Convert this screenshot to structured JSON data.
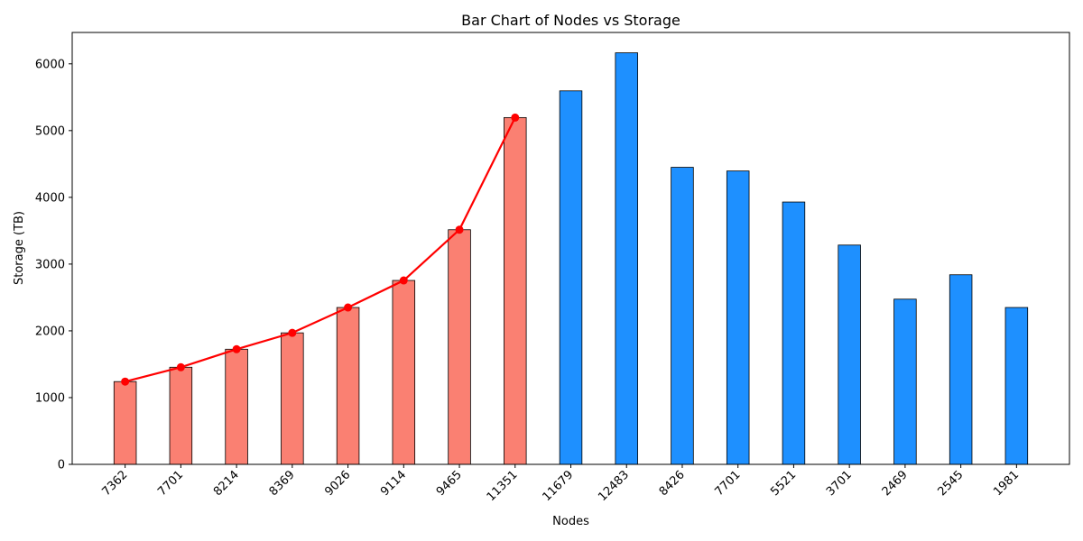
{
  "chart_data": {
    "type": "bar",
    "title": "Bar Chart of Nodes vs Storage",
    "xlabel": "Nodes",
    "ylabel": "Storage (TB)",
    "categories": [
      "7362",
      "7701",
      "8214",
      "8369",
      "9026",
      "9114",
      "9465",
      "11351",
      "11679",
      "12483",
      "8426",
      "7701",
      "5521",
      "3701",
      "2469",
      "2545",
      "1981"
    ],
    "values": [
      1240,
      1455,
      1725,
      1970,
      2350,
      2755,
      3515,
      5195,
      5595,
      6165,
      4450,
      4395,
      3930,
      3285,
      2475,
      2840,
      2350
    ],
    "highlight_count": 8,
    "ylim": [
      0,
      6470
    ],
    "yticks": [
      0,
      1000,
      2000,
      3000,
      4000,
      5000,
      6000
    ],
    "grid": false,
    "colors": {
      "highlight_bar": "#FA8072",
      "normal_bar": "#1E90FF",
      "line": "#FF0000",
      "bar_edge": "#000000"
    },
    "line_series": {
      "values": [
        1240,
        1455,
        1725,
        1970,
        2350,
        2755,
        3515,
        5195
      ]
    }
  }
}
